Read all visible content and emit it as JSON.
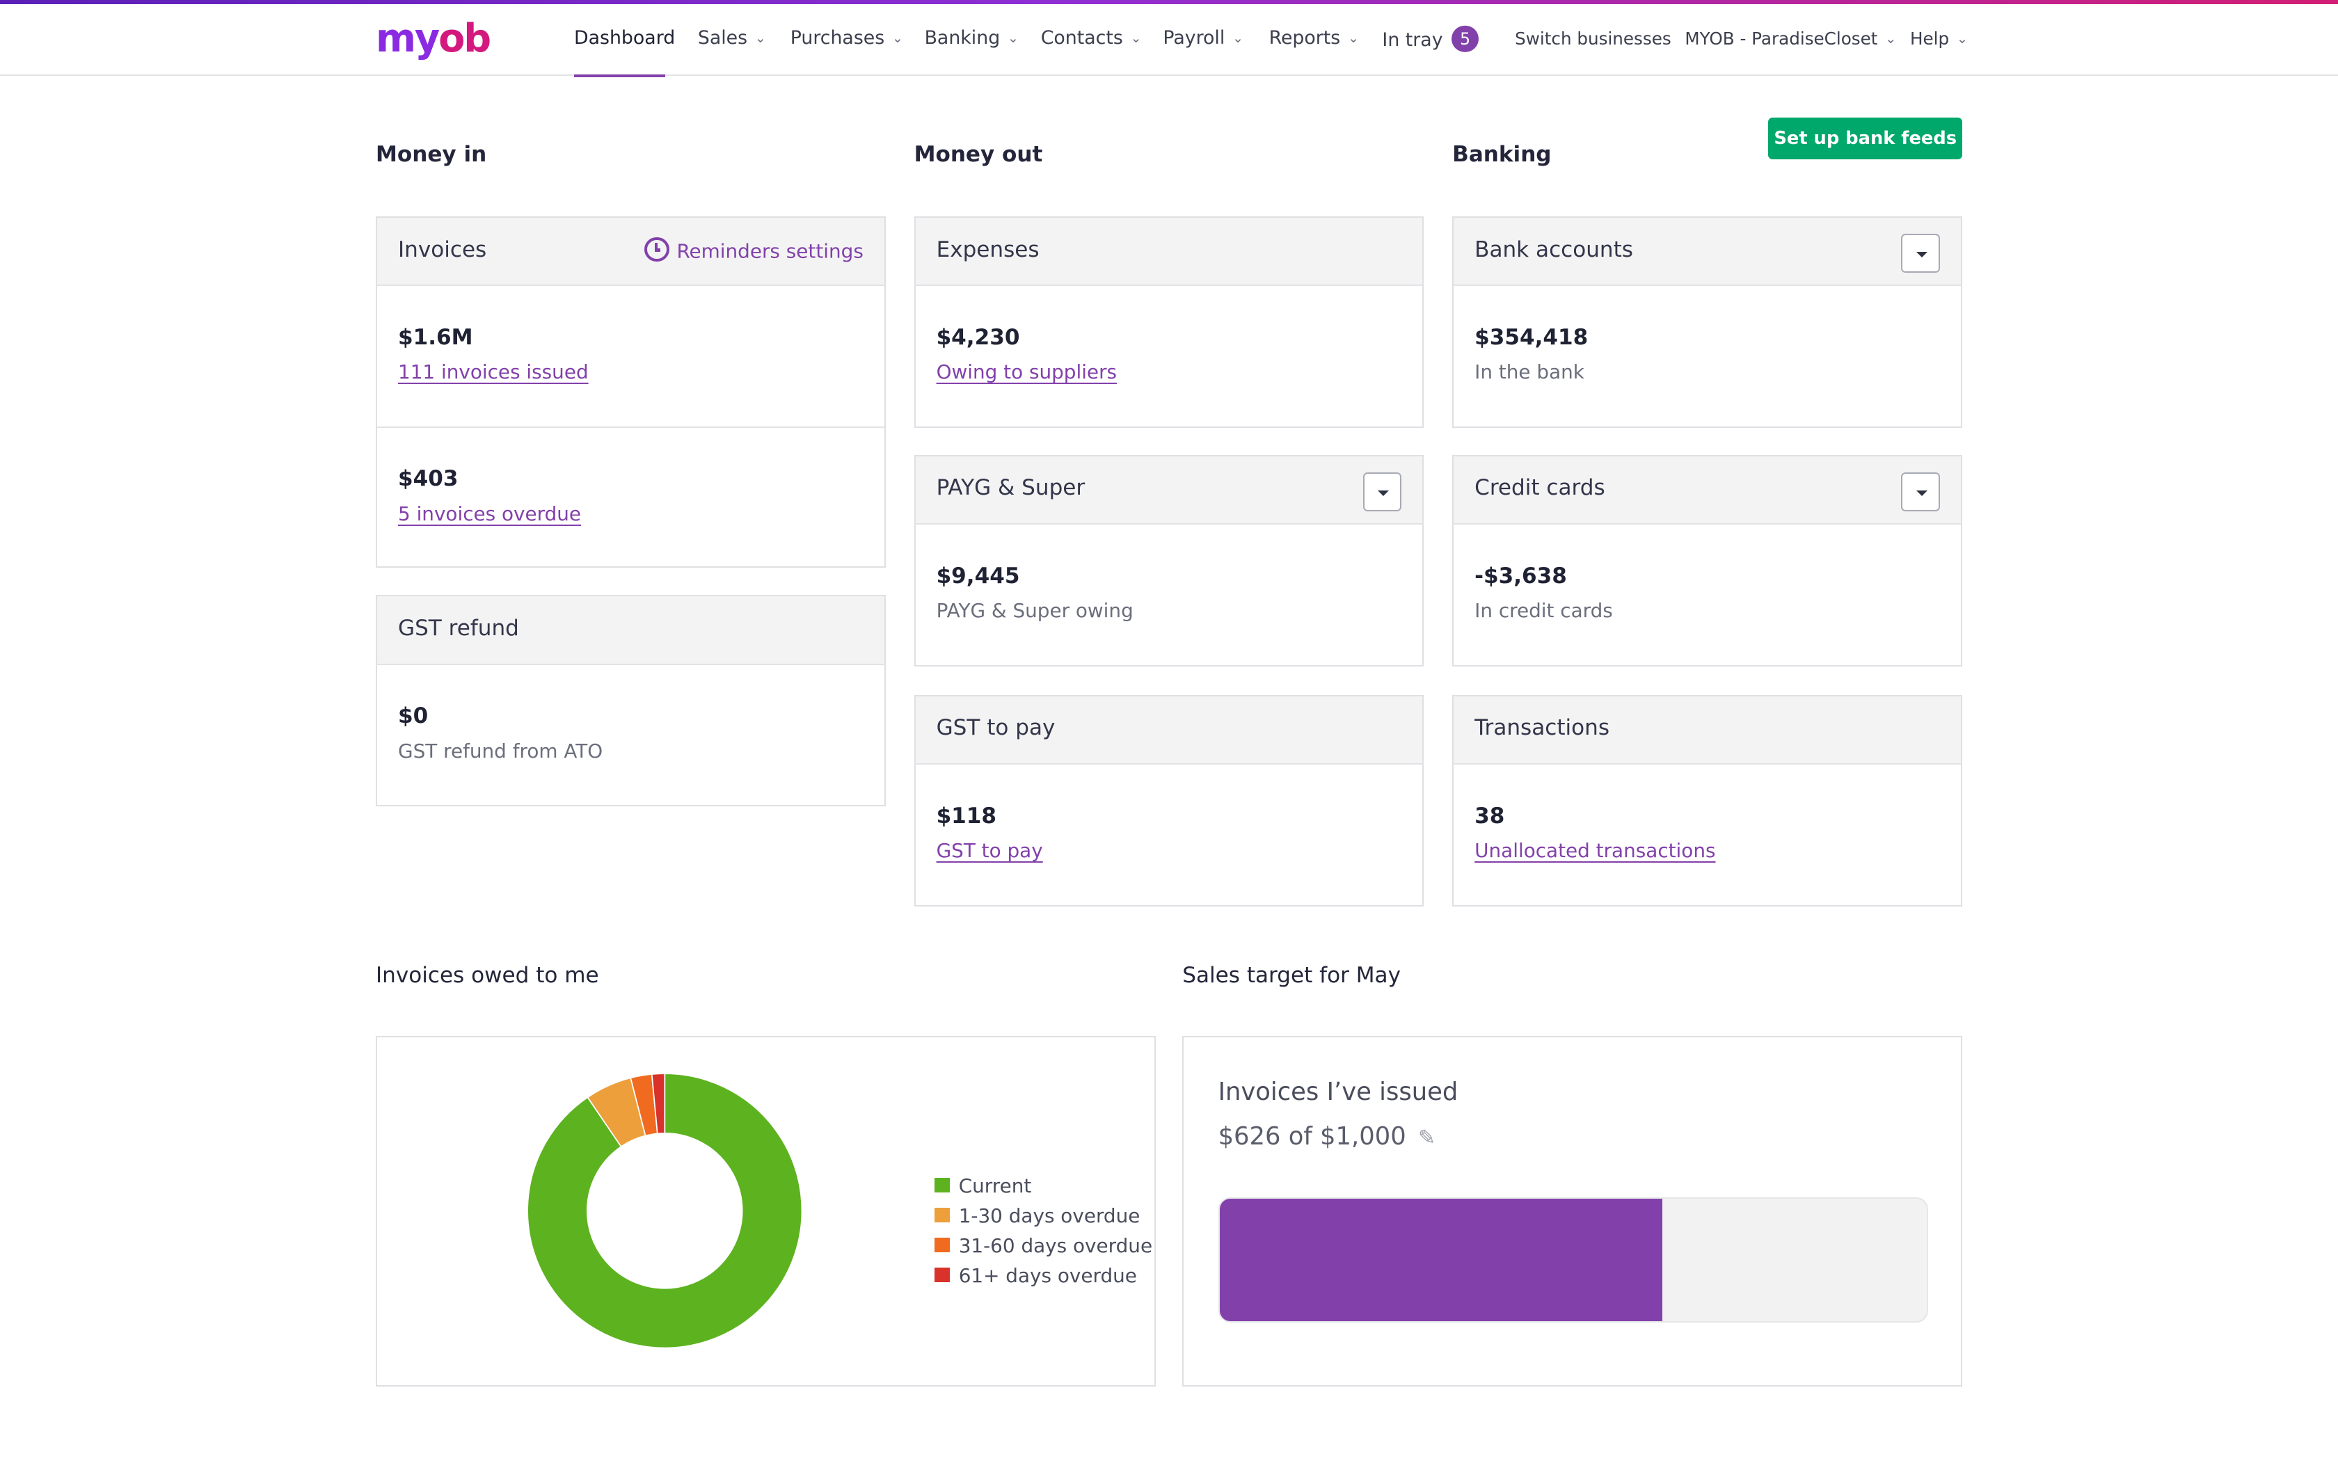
{
  "brand": {
    "logo_part1": "my",
    "logo_part2": "ob"
  },
  "nav": {
    "items": [
      {
        "label": "Dashboard",
        "active": true,
        "has_menu": false
      },
      {
        "label": "Sales",
        "has_menu": true
      },
      {
        "label": "Purchases",
        "has_menu": true
      },
      {
        "label": "Banking",
        "has_menu": true
      },
      {
        "label": "Contacts",
        "has_menu": true
      },
      {
        "label": "Payroll",
        "has_menu": true
      },
      {
        "label": "Reports",
        "has_menu": true
      }
    ],
    "in_tray": {
      "label": "In tray",
      "count": "5"
    },
    "switch_businesses": "Switch businesses",
    "business": "MYOB - ParadiseCloset",
    "help": "Help"
  },
  "sections": {
    "money_in": "Money in",
    "money_out": "Money out",
    "banking": "Banking",
    "setup_bank_feeds": "Set up bank feeds"
  },
  "cards": {
    "invoices": {
      "title": "Invoices",
      "reminders": "Reminders settings",
      "issued_amount": "$1.6M",
      "issued_link": "111 invoices issued",
      "overdue_amount": "$403",
      "overdue_link": "5 invoices overdue"
    },
    "gst_refund": {
      "title": "GST refund",
      "amount": "$0",
      "sub": "GST refund from ATO"
    },
    "expenses": {
      "title": "Expenses",
      "amount": "$4,230",
      "link": "Owing to suppliers"
    },
    "payg": {
      "title": "PAYG & Super",
      "amount": "$9,445",
      "sub": "PAYG & Super owing"
    },
    "gst_pay": {
      "title": "GST to pay",
      "amount": "$118",
      "link": "GST to pay"
    },
    "bank_accounts": {
      "title": "Bank accounts",
      "amount": "$354,418",
      "sub": "In the bank"
    },
    "credit_cards": {
      "title": "Credit cards",
      "amount": "-$3,638",
      "sub": "In credit cards"
    },
    "transactions": {
      "title": "Transactions",
      "amount": "38",
      "link": "Unallocated transactions"
    }
  },
  "invoices_owed": {
    "title": "Invoices owed to me",
    "chart_data": {
      "type": "pie",
      "donut": true,
      "categories": [
        "Current",
        "1-30 days overdue",
        "31-60 days overdue",
        "61+ days overdue"
      ],
      "values": [
        90.5,
        5.5,
        2.5,
        1.5
      ],
      "colors": [
        "#5db21f",
        "#ec9f3b",
        "#f06a1f",
        "#d8322a"
      ],
      "legend_position": "right"
    }
  },
  "sales_target": {
    "title": "Sales target for May",
    "label": "Invoices I’ve issued",
    "amount_text": "$626 of $1,000",
    "progress_fraction": 0.626
  }
}
